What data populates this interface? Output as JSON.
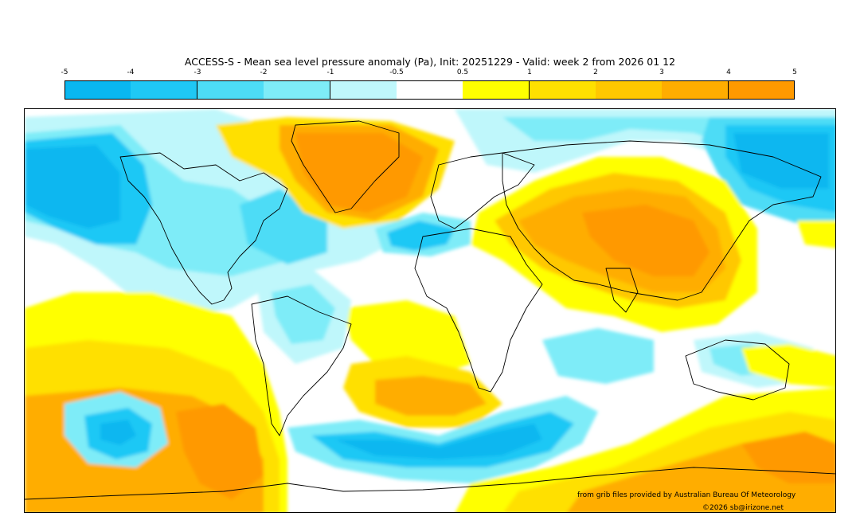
{
  "title": "ACCESS-S - Mean sea level pressure anomaly (Pa), Init: 20251229 - Valid: week 2 from 2026 01 12",
  "colorbar": {
    "ticks": [
      "-5",
      "-4",
      "-3",
      "-2",
      "-1",
      "-0.5",
      "0.5",
      "1",
      "2",
      "3",
      "4",
      "5"
    ],
    "colors": [
      "#0ab7f0",
      "#1fc8f5",
      "#4ddcf6",
      "#7eecf8",
      "#bff7fb",
      "#ffffff",
      "#ffff00",
      "#ffe000",
      "#ffc800",
      "#ffad00",
      "#ff9900"
    ]
  },
  "map": {
    "projection": "equirectangular",
    "extent": "global",
    "field": "Mean sea level pressure anomaly",
    "units": "Pa"
  },
  "credits": {
    "source": "from grib files provided by Australian Bureau Of Meteorology",
    "copyright": "©2026 sb@irizone.net"
  }
}
